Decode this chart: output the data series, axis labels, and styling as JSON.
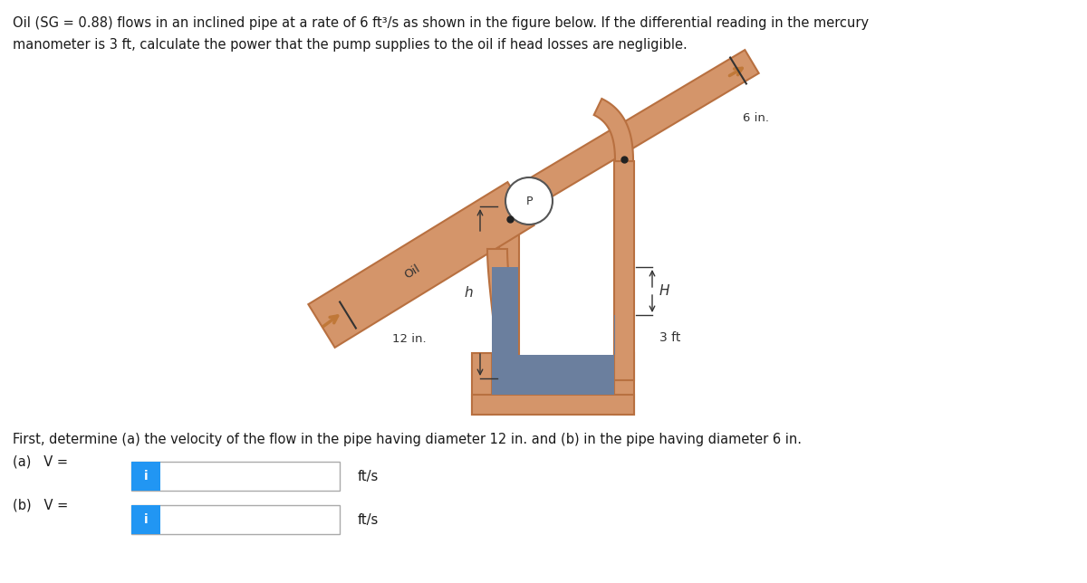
{
  "fig_width": 12.0,
  "fig_height": 6.44,
  "dpi": 100,
  "pipe_color": "#D4956A",
  "pipe_edge_color": "#B87040",
  "mercury_color": "#6B7F9E",
  "arrow_color": "#C07838",
  "input_box_color": "#2196F3",
  "input_box_text": "i",
  "label_12in": "12 in.",
  "label_6in": "6 in.",
  "label_3ft": "3 ft",
  "label_H": "H",
  "label_h": "h",
  "label_P": "P",
  "label_Oil": "Oil",
  "title_line1": "Oil (SG = 0.88) flows in an inclined pipe at a rate of 6 ft³/s as shown in the figure below. If the differential reading in the mercury",
  "title_line2": "manometer is 3 ft, calculate the power that the pump supplies to the oil if head losses are negligible.",
  "subtitle": "First, determine (a) the velocity of the flow in the pipe having diameter 12 in. and (b) in the pipe having diameter 6 in.",
  "answer_a_label": "(a)   V =",
  "answer_b_label": "(b)   V =",
  "unit_label": "ft/s"
}
